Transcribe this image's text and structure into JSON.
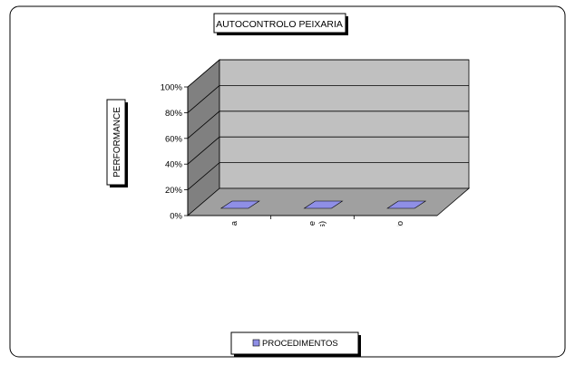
{
  "chart_data": {
    "type": "bar",
    "title": "AUTOCONTROLO PEIXARIA",
    "ylabel": "PERFORMANCE",
    "xlabel": "",
    "categories": [
      [
        "Exposição/reposição e venda"
      ],
      [
        "Armazenamento (Peixe fresco e",
        "congelados)"
      ],
      [
        "Autocontrolo"
      ]
    ],
    "series": [
      {
        "name": "PROCEDIMENTOS",
        "values": [
          0,
          0,
          0
        ]
      }
    ],
    "ylim": [
      0,
      100
    ],
    "yticks": [
      "0%",
      "20%",
      "40%",
      "60%",
      "80%",
      "100%"
    ],
    "grid": true,
    "legend": "bottom",
    "three_d": true,
    "colors": {
      "bar": "#8f8fe6",
      "wall": "#c0c0c0",
      "wall_side": "#808080",
      "floor": "#a0a0a0"
    }
  }
}
